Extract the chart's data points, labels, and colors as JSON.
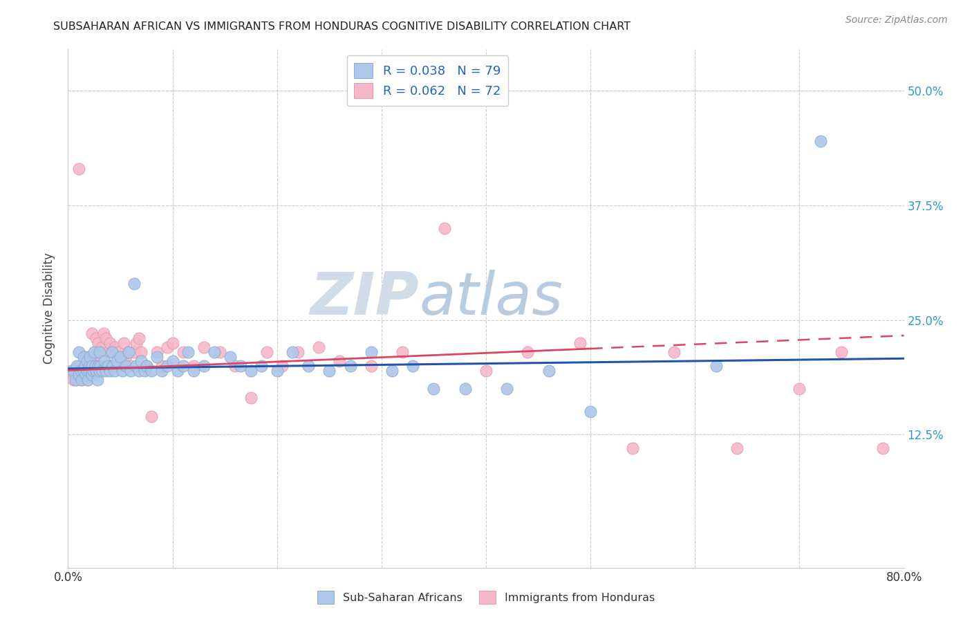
{
  "title": "SUBSAHARAN AFRICAN VS IMMIGRANTS FROM HONDURAS COGNITIVE DISABILITY CORRELATION CHART",
  "source": "Source: ZipAtlas.com",
  "ylabel": "Cognitive Disability",
  "xlim": [
    0.0,
    0.8
  ],
  "ylim": [
    -0.02,
    0.545
  ],
  "legend_r1": "R = 0.038",
  "legend_n1": "N = 79",
  "legend_r2": "R = 0.062",
  "legend_n2": "N = 72",
  "series1_color": "#aec6e8",
  "series2_color": "#f4b8c8",
  "series1_edge": "#85acd4",
  "series2_edge": "#e896b0",
  "line1_color": "#2255aa",
  "line2_color": "#dd4466",
  "watermark_zip": "ZIP",
  "watermark_atlas": "atlas",
  "watermark_color_zip": "#d0dce8",
  "watermark_color_atlas": "#b8cce0",
  "ytick_vals": [
    0.0,
    0.125,
    0.25,
    0.375,
    0.5
  ],
  "ytick_labels": [
    "",
    "12.5%",
    "25.0%",
    "37.5%",
    "50.0%"
  ],
  "blue_x": [
    0.005,
    0.007,
    0.008,
    0.01,
    0.01,
    0.012,
    0.013,
    0.015,
    0.015,
    0.016,
    0.017,
    0.018,
    0.018,
    0.019,
    0.02,
    0.02,
    0.021,
    0.022,
    0.023,
    0.023,
    0.024,
    0.025,
    0.026,
    0.027,
    0.028,
    0.029,
    0.03,
    0.03,
    0.031,
    0.033,
    0.035,
    0.036,
    0.038,
    0.04,
    0.042,
    0.043,
    0.045,
    0.047,
    0.05,
    0.052,
    0.055,
    0.058,
    0.06,
    0.063,
    0.065,
    0.068,
    0.07,
    0.073,
    0.075,
    0.08,
    0.085,
    0.09,
    0.095,
    0.1,
    0.105,
    0.11,
    0.115,
    0.12,
    0.13,
    0.14,
    0.155,
    0.165,
    0.175,
    0.185,
    0.2,
    0.215,
    0.23,
    0.25,
    0.27,
    0.29,
    0.31,
    0.33,
    0.35,
    0.38,
    0.42,
    0.46,
    0.5,
    0.62,
    0.72
  ],
  "blue_y": [
    0.195,
    0.185,
    0.2,
    0.19,
    0.215,
    0.195,
    0.185,
    0.195,
    0.21,
    0.2,
    0.19,
    0.205,
    0.195,
    0.185,
    0.2,
    0.195,
    0.21,
    0.195,
    0.2,
    0.19,
    0.195,
    0.215,
    0.2,
    0.195,
    0.185,
    0.2,
    0.215,
    0.195,
    0.2,
    0.195,
    0.205,
    0.195,
    0.2,
    0.195,
    0.215,
    0.2,
    0.195,
    0.205,
    0.21,
    0.195,
    0.2,
    0.215,
    0.195,
    0.29,
    0.2,
    0.195,
    0.205,
    0.195,
    0.2,
    0.195,
    0.21,
    0.195,
    0.2,
    0.205,
    0.195,
    0.2,
    0.215,
    0.195,
    0.2,
    0.215,
    0.21,
    0.2,
    0.195,
    0.2,
    0.195,
    0.215,
    0.2,
    0.195,
    0.2,
    0.215,
    0.195,
    0.2,
    0.175,
    0.175,
    0.175,
    0.195,
    0.15,
    0.2,
    0.445
  ],
  "pink_x": [
    0.003,
    0.005,
    0.007,
    0.008,
    0.01,
    0.01,
    0.012,
    0.013,
    0.014,
    0.015,
    0.016,
    0.017,
    0.018,
    0.018,
    0.019,
    0.02,
    0.021,
    0.022,
    0.023,
    0.024,
    0.025,
    0.026,
    0.027,
    0.028,
    0.029,
    0.03,
    0.032,
    0.034,
    0.036,
    0.038,
    0.04,
    0.042,
    0.045,
    0.048,
    0.05,
    0.053,
    0.055,
    0.058,
    0.06,
    0.063,
    0.065,
    0.068,
    0.07,
    0.075,
    0.08,
    0.085,
    0.09,
    0.095,
    0.1,
    0.11,
    0.12,
    0.13,
    0.145,
    0.16,
    0.175,
    0.19,
    0.205,
    0.22,
    0.24,
    0.26,
    0.29,
    0.32,
    0.36,
    0.4,
    0.44,
    0.49,
    0.54,
    0.58,
    0.64,
    0.7,
    0.74,
    0.78
  ],
  "pink_y": [
    0.195,
    0.185,
    0.195,
    0.185,
    0.2,
    0.415,
    0.195,
    0.185,
    0.195,
    0.2,
    0.195,
    0.21,
    0.195,
    0.185,
    0.2,
    0.195,
    0.21,
    0.2,
    0.235,
    0.195,
    0.21,
    0.2,
    0.23,
    0.215,
    0.225,
    0.2,
    0.22,
    0.235,
    0.23,
    0.215,
    0.225,
    0.2,
    0.22,
    0.215,
    0.2,
    0.225,
    0.21,
    0.215,
    0.2,
    0.215,
    0.225,
    0.23,
    0.215,
    0.2,
    0.145,
    0.215,
    0.2,
    0.22,
    0.225,
    0.215,
    0.2,
    0.22,
    0.215,
    0.2,
    0.165,
    0.215,
    0.2,
    0.215,
    0.22,
    0.205,
    0.2,
    0.215,
    0.35,
    0.195,
    0.215,
    0.225,
    0.11,
    0.215,
    0.11,
    0.175,
    0.215,
    0.11
  ],
  "line1_x0": 0.0,
  "line1_y0": 0.197,
  "line1_x1": 0.8,
  "line1_y1": 0.208,
  "line2_x0": 0.0,
  "line2_y0": 0.195,
  "line2_x1": 0.8,
  "line2_y1": 0.233,
  "line2_solid_end": 0.5
}
